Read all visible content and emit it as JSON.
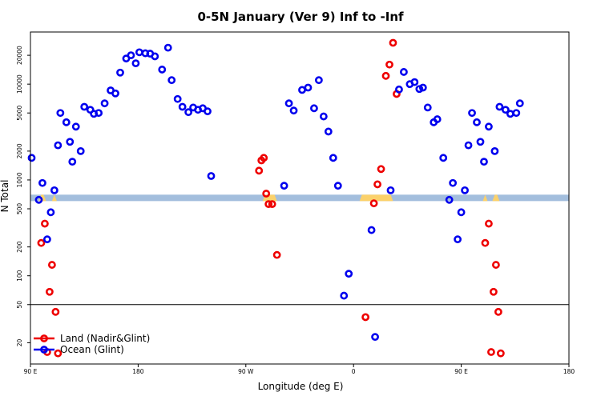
{
  "chart_data": {
    "type": "scatter",
    "title": "0-5N January (Ver 9)   Inf to -Inf",
    "xlabel": "Longitude (deg E)",
    "ylabel": "N Total",
    "y_scale": "log",
    "ylim": [
      12,
      35000
    ],
    "x_ticks": [
      {
        "pos": 90,
        "label": "90 E"
      },
      {
        "pos": 180,
        "label": "180"
      },
      {
        "pos": 270,
        "label": "90 W"
      },
      {
        "pos": 360,
        "label": "0"
      },
      {
        "pos": 450,
        "label": "90 E"
      },
      {
        "pos": 540,
        "label": "180"
      }
    ],
    "y_ticks": [
      20,
      50,
      100,
      200,
      500,
      1000,
      2000,
      5000,
      10000,
      20000
    ],
    "reference_line_y": 50,
    "land_band_y": 650,
    "colors": {
      "land": "#ee0000",
      "ocean": "#0000ee",
      "band_ocean": "#a3bedd",
      "band_land": "#fbd16b"
    },
    "legend": {
      "position": "bottom-left",
      "entries": [
        "Land (Nadir&Glint)",
        "Ocean (Glint)"
      ]
    },
    "series": [
      {
        "name": "Land (Nadir&Glint)",
        "color": "#ee0000",
        "points": [
          [
            99,
            220
          ],
          [
            102,
            350
          ],
          [
            104,
            16
          ],
          [
            106,
            68
          ],
          [
            108,
            130
          ],
          [
            111,
            42
          ],
          [
            113,
            15.5
          ],
          [
            281,
            1250
          ],
          [
            283,
            1600
          ],
          [
            285,
            1700
          ],
          [
            287,
            720
          ],
          [
            289,
            560
          ],
          [
            292,
            560
          ],
          [
            296,
            165
          ],
          [
            370,
            37
          ],
          [
            377,
            570
          ],
          [
            380,
            900
          ],
          [
            383,
            1300
          ],
          [
            387,
            12200
          ],
          [
            390,
            16000
          ],
          [
            393,
            27000
          ],
          [
            396,
            7900
          ],
          [
            470,
            220
          ],
          [
            473,
            350
          ],
          [
            475,
            16
          ],
          [
            477,
            68
          ],
          [
            479,
            130
          ],
          [
            481,
            42
          ],
          [
            483,
            15.5
          ]
        ]
      },
      {
        "name": "Ocean (Glint)",
        "color": "#0000ee",
        "points": [
          [
            91,
            1700
          ],
          [
            97,
            620
          ],
          [
            100,
            930
          ],
          [
            104,
            240
          ],
          [
            107,
            460
          ],
          [
            110,
            780
          ],
          [
            113,
            2300
          ],
          [
            115,
            5000
          ],
          [
            120,
            4000
          ],
          [
            123,
            2500
          ],
          [
            125,
            1550
          ],
          [
            128,
            3600
          ],
          [
            132,
            2000
          ],
          [
            135,
            5800
          ],
          [
            140,
            5400
          ],
          [
            143,
            4900
          ],
          [
            147,
            5000
          ],
          [
            152,
            6300
          ],
          [
            157,
            8600
          ],
          [
            161,
            8000
          ],
          [
            165,
            13200
          ],
          [
            170,
            18500
          ],
          [
            174,
            20000
          ],
          [
            178,
            16500
          ],
          [
            181,
            21500
          ],
          [
            186,
            21000
          ],
          [
            190,
            20800
          ],
          [
            194,
            19500
          ],
          [
            200,
            14200
          ],
          [
            205,
            24000
          ],
          [
            208,
            11000
          ],
          [
            213,
            7000
          ],
          [
            217,
            5800
          ],
          [
            222,
            5100
          ],
          [
            226,
            5700
          ],
          [
            230,
            5400
          ],
          [
            234,
            5600
          ],
          [
            238,
            5200
          ],
          [
            241,
            1100
          ],
          [
            302,
            870
          ],
          [
            306,
            6300
          ],
          [
            310,
            5300
          ],
          [
            317,
            8700
          ],
          [
            322,
            9200
          ],
          [
            327,
            5600
          ],
          [
            331,
            11000
          ],
          [
            335,
            4600
          ],
          [
            339,
            3200
          ],
          [
            343,
            1700
          ],
          [
            347,
            870
          ],
          [
            352,
            62
          ],
          [
            356,
            105
          ],
          [
            375,
            300
          ],
          [
            378,
            23
          ],
          [
            391,
            780
          ],
          [
            398,
            8800
          ],
          [
            402,
            13400
          ],
          [
            407,
            10000
          ],
          [
            411,
            10500
          ],
          [
            415,
            8900
          ],
          [
            418,
            9200
          ],
          [
            422,
            5700
          ],
          [
            427,
            4000
          ],
          [
            430,
            4300
          ],
          [
            435,
            1700
          ],
          [
            440,
            620
          ],
          [
            443,
            930
          ],
          [
            447,
            240
          ],
          [
            450,
            460
          ],
          [
            453,
            780
          ],
          [
            456,
            2300
          ],
          [
            459,
            5000
          ],
          [
            463,
            4000
          ],
          [
            466,
            2500
          ],
          [
            469,
            1550
          ],
          [
            473,
            3600
          ],
          [
            478,
            2000
          ],
          [
            482,
            5800
          ],
          [
            487,
            5400
          ],
          [
            491,
            4900
          ],
          [
            496,
            5000
          ],
          [
            499,
            6300
          ]
        ]
      }
    ]
  }
}
